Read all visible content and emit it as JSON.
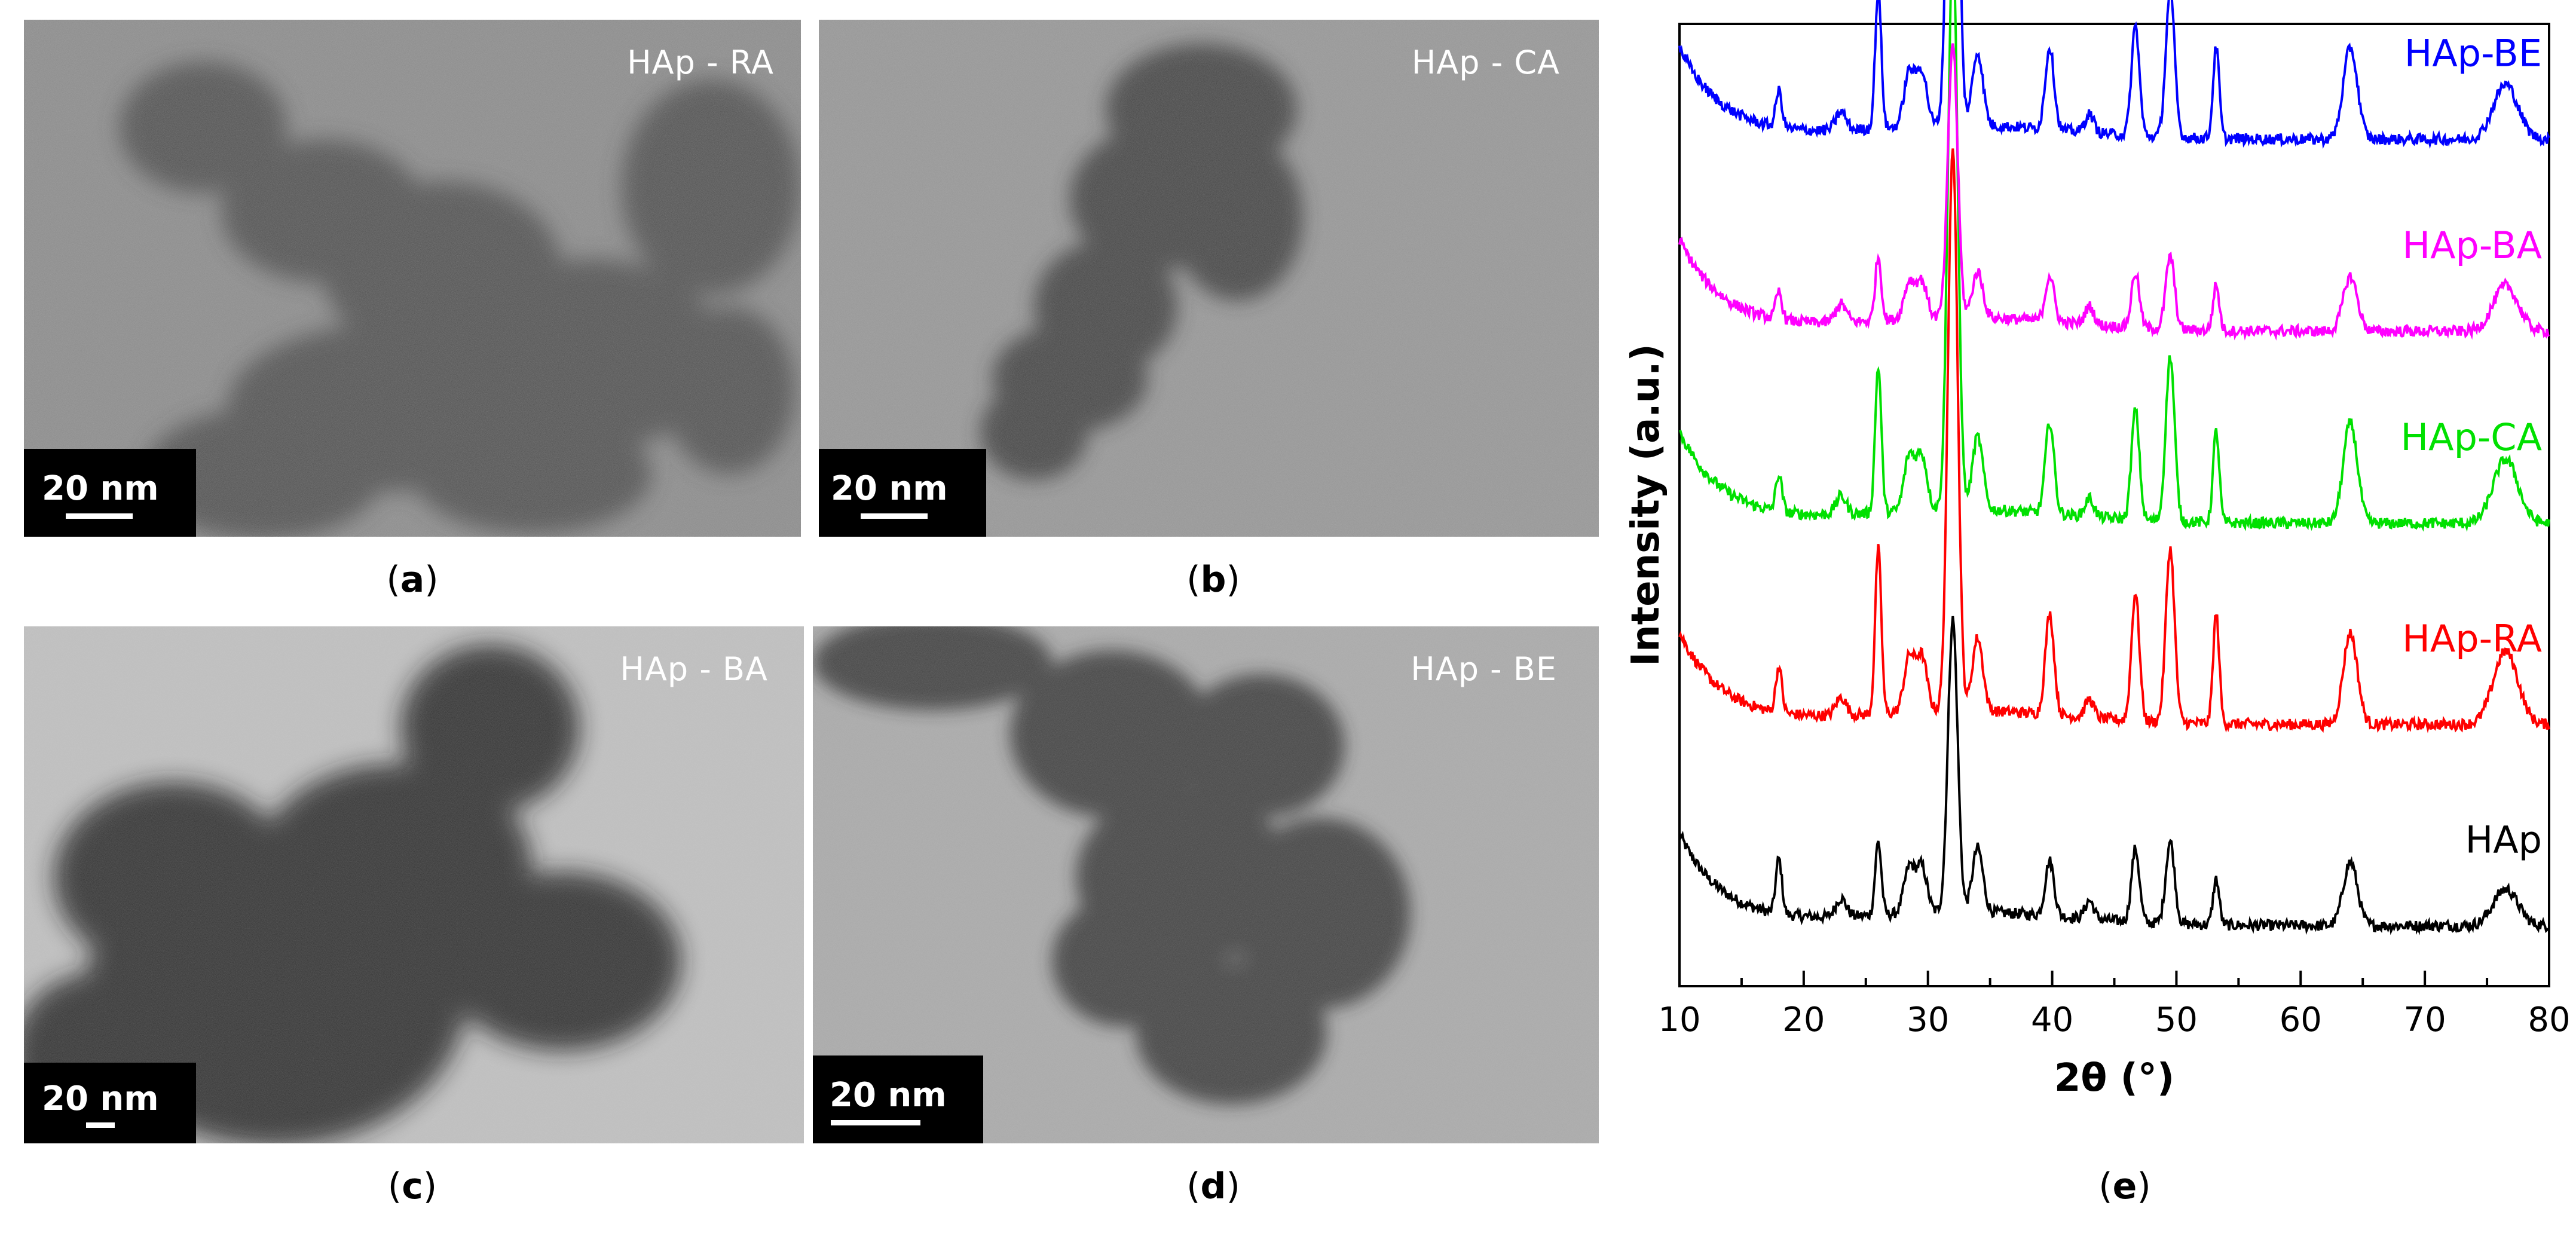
{
  "panels": [
    {
      "letter": "a",
      "sample_label": "HAp - RA",
      "scale_bar": "20 nm"
    },
    {
      "letter": "b",
      "sample_label": "HAp - CA",
      "scale_bar": "20 nm"
    },
    {
      "letter": "c",
      "sample_label": "HAp - BA",
      "scale_bar": "20 nm"
    },
    {
      "letter": "d",
      "sample_label": "HAp - BE",
      "scale_bar": "20 nm"
    },
    {
      "letter": "e"
    }
  ],
  "chart_data": {
    "type": "line",
    "xlabel": "2θ (°)",
    "ylabel": "Intensity (a.u.)",
    "xlim": [
      10,
      80
    ],
    "xticks": [
      10,
      20,
      30,
      40,
      50,
      60,
      70,
      80
    ],
    "y_scale": "arbitrary units, stacked offset traces",
    "grid": false,
    "legend": "series names labelled at right end of each trace",
    "peaks_2theta": [
      18.0,
      23.0,
      26.0,
      28.5,
      29.5,
      32.0,
      34.0,
      39.8,
      43.0,
      46.7,
      49.5,
      53.2,
      64.0,
      76.5
    ],
    "series": [
      {
        "name": "HAp",
        "color": "#000000",
        "offset": 0,
        "peak_heights": [
          0.06,
          0.02,
          0.08,
          0.05,
          0.05,
          0.32,
          0.07,
          0.06,
          0.02,
          0.08,
          0.09,
          0.05,
          0.07,
          0.04
        ]
      },
      {
        "name": "HAp-RA",
        "color": "#ff0000",
        "offset": 0.22,
        "peak_heights": [
          0.05,
          0.02,
          0.18,
          0.06,
          0.06,
          0.62,
          0.08,
          0.11,
          0.02,
          0.14,
          0.19,
          0.12,
          0.1,
          0.08
        ]
      },
      {
        "name": "HAp-CA",
        "color": "#00e000",
        "offset": 0.44,
        "peak_heights": [
          0.04,
          0.02,
          0.16,
          0.06,
          0.06,
          0.62,
          0.08,
          0.1,
          0.02,
          0.12,
          0.18,
          0.1,
          0.11,
          0.07
        ]
      },
      {
        "name": "HAp-BA",
        "color": "#ff00ff",
        "offset": 0.65,
        "peak_heights": [
          0.03,
          0.02,
          0.07,
          0.04,
          0.04,
          0.3,
          0.05,
          0.05,
          0.02,
          0.06,
          0.08,
          0.05,
          0.06,
          0.05
        ]
      },
      {
        "name": "HAp-BE",
        "color": "#0000ff",
        "offset": 0.86,
        "peak_heights": [
          0.04,
          0.02,
          0.15,
          0.06,
          0.06,
          0.68,
          0.08,
          0.09,
          0.02,
          0.12,
          0.16,
          0.1,
          0.1,
          0.06
        ]
      }
    ]
  }
}
